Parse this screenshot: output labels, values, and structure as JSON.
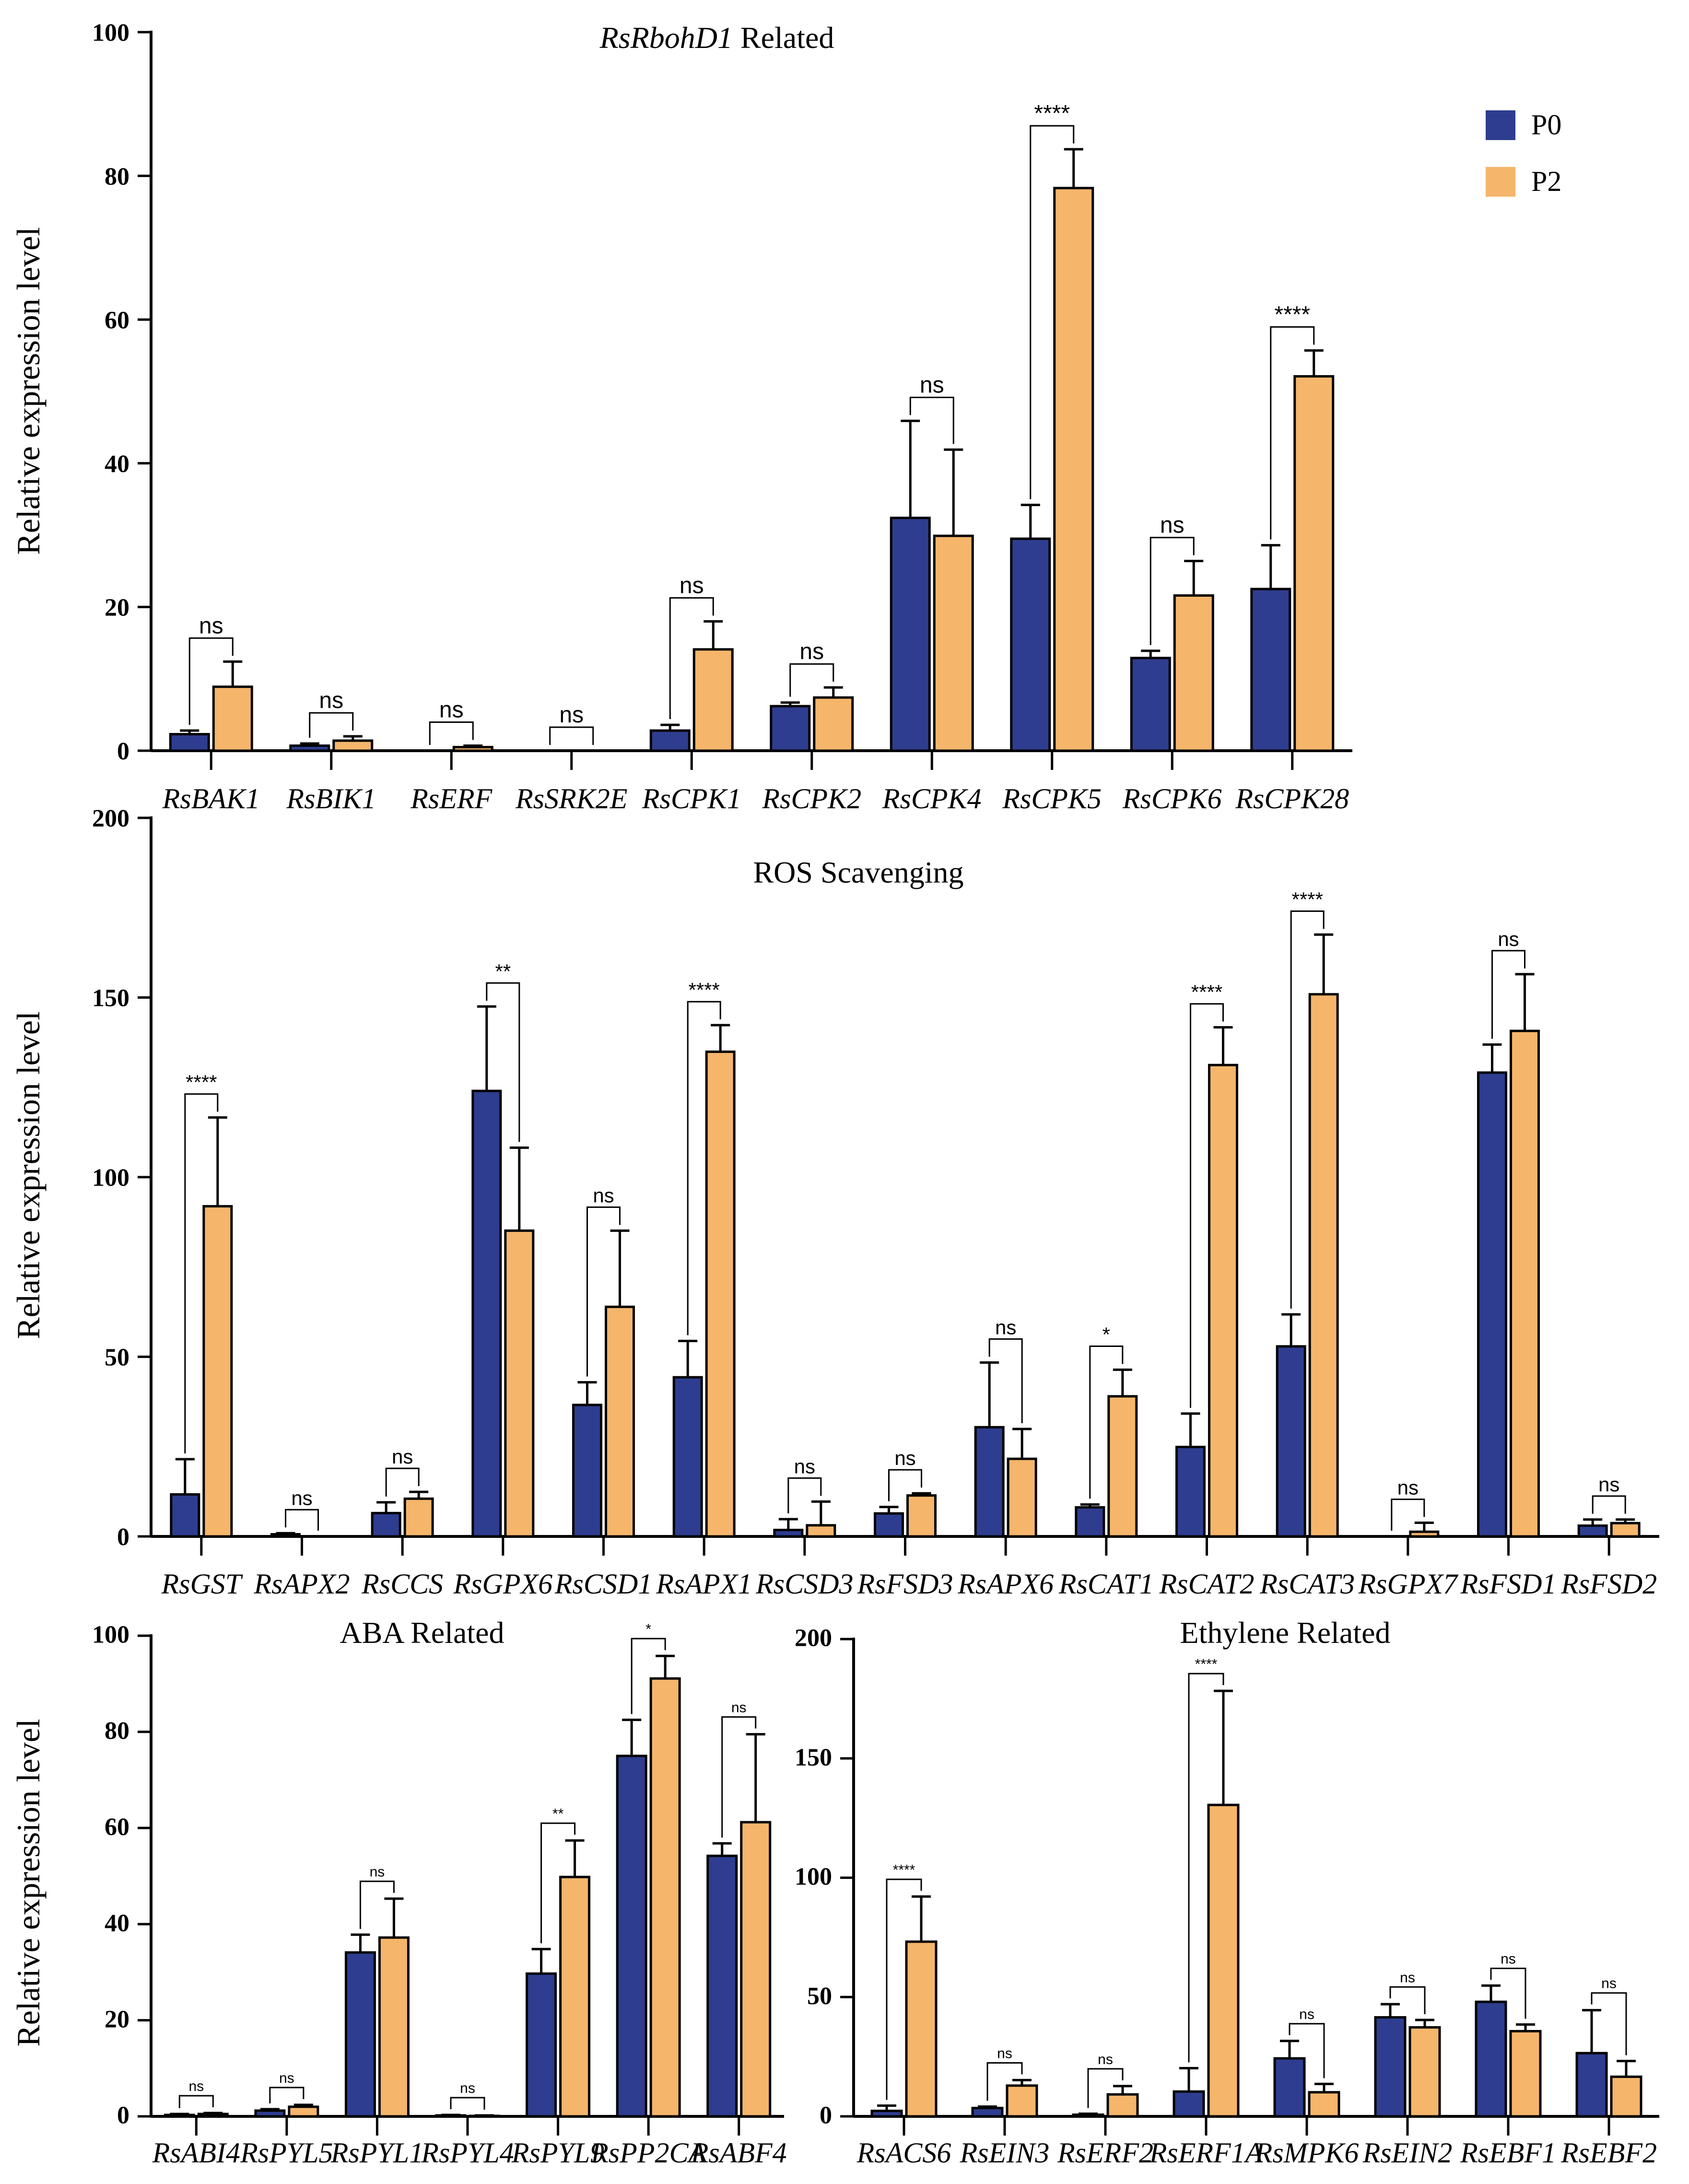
{
  "chart_data": [
    {
      "type": "bar",
      "title": "RsRbohD1 Related",
      "title_italic_part": "RsRbohD1",
      "title_rest": " Related",
      "ylabel": "Relative expression  level",
      "xlabel": "",
      "ylim": [
        0,
        100
      ],
      "yticks": [
        0,
        20,
        40,
        60,
        80,
        100
      ],
      "categories": [
        "RsBAK1",
        "RsBIK1",
        "RsERF",
        "RsSRK2E",
        "RsCPK1",
        "RsCPK2",
        "RsCPK4",
        "RsCPK5",
        "RsCPK6",
        "RsCPK28"
      ],
      "series": [
        {
          "name": "P0",
          "values": [
            2.3,
            0.7,
            0,
            0,
            2.8,
            6.2,
            32.4,
            29.5,
            12.9,
            22.5
          ],
          "errors": [
            0.5,
            0.3,
            0,
            0,
            0.8,
            0.5,
            13.5,
            4.7,
            1.0,
            6.1
          ]
        },
        {
          "name": "P2",
          "values": [
            8.9,
            1.4,
            0.5,
            0,
            14.1,
            7.4,
            29.9,
            78.3,
            21.6,
            52.1
          ],
          "errors": [
            3.5,
            0.6,
            0.2,
            0,
            3.9,
            1.4,
            12.0,
            5.4,
            4.8,
            3.6
          ]
        }
      ],
      "significance": [
        "ns",
        "ns",
        "ns",
        "ns",
        "ns",
        "ns",
        "ns",
        "****",
        "ns",
        "****"
      ],
      "legend": [
        "P0",
        "P2"
      ]
    },
    {
      "type": "bar",
      "title": "ROS Scavenging",
      "ylabel": "Relative expression  level",
      "xlabel": "",
      "ylim": [
        0,
        200
      ],
      "yticks": [
        0,
        50,
        100,
        150,
        200
      ],
      "categories": [
        "RsGST",
        "RsAPX2",
        "RsCCS",
        "RsGPX6",
        "RsCSD1",
        "RsAPX1",
        "RsCSD3",
        "RsFSD3",
        "RsAPX6",
        "RsCAT1",
        "RsCAT2",
        "RsCAT3",
        "RsGPX7",
        "RsFSD1",
        "RsFSD2"
      ],
      "series": [
        {
          "name": "P0",
          "values": [
            11.7,
            0.6,
            6.5,
            124,
            36.6,
            44.3,
            1.8,
            6.4,
            30.4,
            8.1,
            24.9,
            52.9,
            0,
            129.1,
            3.0
          ],
          "errors": [
            9.8,
            0.3,
            3.0,
            23.5,
            6.3,
            10.1,
            3.0,
            1.8,
            18.0,
            0.8,
            9.3,
            8.9,
            0,
            7.8,
            1.7
          ]
        },
        {
          "name": "P2",
          "values": [
            91.9,
            0,
            10.5,
            85.1,
            63.9,
            134.9,
            3.1,
            11.4,
            21.6,
            39.0,
            131.2,
            150.9,
            1.3,
            140.7,
            3.7
          ],
          "errors": [
            24.7,
            0,
            1.9,
            23.1,
            21.2,
            7.4,
            6.6,
            0.6,
            8.3,
            7.4,
            10.5,
            16.6,
            2.5,
            15.8,
            1.0
          ]
        }
      ],
      "significance": [
        "****",
        "ns",
        "ns",
        "**",
        "ns",
        "****",
        "ns",
        "ns",
        "ns",
        "*",
        "****",
        "****",
        "ns",
        "ns",
        "ns"
      ]
    },
    {
      "type": "bar",
      "title": "ABA Related",
      "ylabel": "Relative expression  level",
      "xlabel": "",
      "ylim": [
        0,
        100
      ],
      "yticks": [
        0,
        20,
        40,
        60,
        80,
        100
      ],
      "categories": [
        "RsABI4",
        "RsPYL5",
        "RsPYL1",
        "RsPYL4",
        "RsPYL9",
        "RsPP2CA",
        "RsABF4"
      ],
      "series": [
        {
          "name": "P0",
          "values": [
            0.3,
            1.2,
            34.1,
            0.2,
            29.7,
            75.0,
            54.2
          ],
          "errors": [
            0.2,
            0.3,
            3.7,
            0.1,
            5.1,
            7.5,
            2.6
          ]
        },
        {
          "name": "P2",
          "values": [
            0.5,
            2.0,
            37.2,
            0.1,
            49.8,
            91.1,
            61.2
          ],
          "errors": [
            0.2,
            0.4,
            8.1,
            0.1,
            7.6,
            4.7,
            18.3
          ]
        }
      ],
      "significance": [
        "ns",
        "ns",
        "ns",
        "ns",
        "**",
        "*",
        "ns"
      ]
    },
    {
      "type": "bar",
      "title": "Ethylene Related",
      "ylabel": "",
      "xlabel": "",
      "ylim": [
        0,
        200
      ],
      "yticks": [
        0,
        50,
        100,
        150,
        200
      ],
      "categories": [
        "RsACS6",
        "RsEIN3",
        "RsERF2",
        "RsERF1A",
        "RsMPK6",
        "RsEIN2",
        "RsEBF1",
        "RsEBF2"
      ],
      "series": [
        {
          "name": "P0",
          "values": [
            2.3,
            3.5,
            0.7,
            10.4,
            24.3,
            41.5,
            48.0,
            26.5
          ],
          "errors": [
            2.2,
            0.6,
            0.4,
            9.8,
            7.3,
            5.5,
            6.8,
            18.0
          ]
        },
        {
          "name": "P2",
          "values": [
            73.2,
            12.9,
            9.2,
            130.5,
            10.1,
            37.3,
            35.7,
            16.6
          ],
          "errors": [
            18.9,
            2.3,
            3.5,
            47.8,
            3.5,
            3.1,
            2.8,
            6.6
          ]
        }
      ],
      "significance": [
        "****",
        "ns",
        "ns",
        "****",
        "ns",
        "ns",
        "ns",
        "ns"
      ]
    }
  ],
  "colors": {
    "P0": "#2e3d8f",
    "P2": "#f5b56b"
  }
}
